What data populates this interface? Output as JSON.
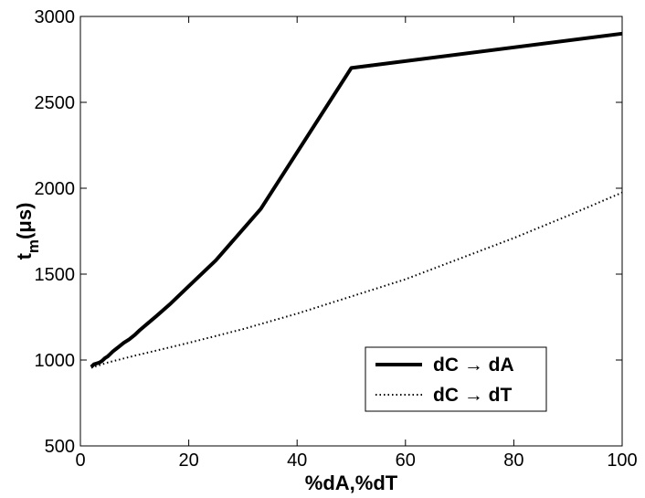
{
  "chart_data": {
    "type": "line",
    "title": "",
    "xlabel": "%dA,%dT",
    "ylabel_main": "t",
    "ylabel_sub": "m",
    "ylabel_unit": "(μs)",
    "xlim": [
      0,
      100
    ],
    "ylim": [
      500,
      3000
    ],
    "xticks": [
      0,
      20,
      40,
      60,
      80,
      100
    ],
    "yticks": [
      500,
      1000,
      1500,
      2000,
      2500,
      3000
    ],
    "grid": false,
    "legend_position": "bottom-right",
    "series": [
      {
        "name": "dC → dA",
        "style": "solid",
        "color": "#000000",
        "x": [
          2,
          2.5,
          3,
          3.5,
          4,
          4.5,
          5,
          5.5,
          6,
          7,
          8,
          9,
          10,
          11,
          12.5,
          14,
          16.7,
          20,
          25,
          33.3,
          50,
          100
        ],
        "y": [
          960,
          975,
          980,
          985,
          995,
          1010,
          1020,
          1035,
          1050,
          1075,
          1100,
          1120,
          1145,
          1175,
          1215,
          1255,
          1330,
          1430,
          1580,
          1880,
          2700,
          2900
        ]
      },
      {
        "name": "dC → dT",
        "style": "dotted",
        "color": "#000000",
        "x": [
          2,
          5,
          10,
          20,
          30,
          40,
          50,
          60,
          70,
          80,
          90,
          100
        ],
        "y": [
          955,
          985,
          1025,
          1100,
          1180,
          1270,
          1370,
          1470,
          1590,
          1710,
          1840,
          1975
        ]
      }
    ]
  }
}
